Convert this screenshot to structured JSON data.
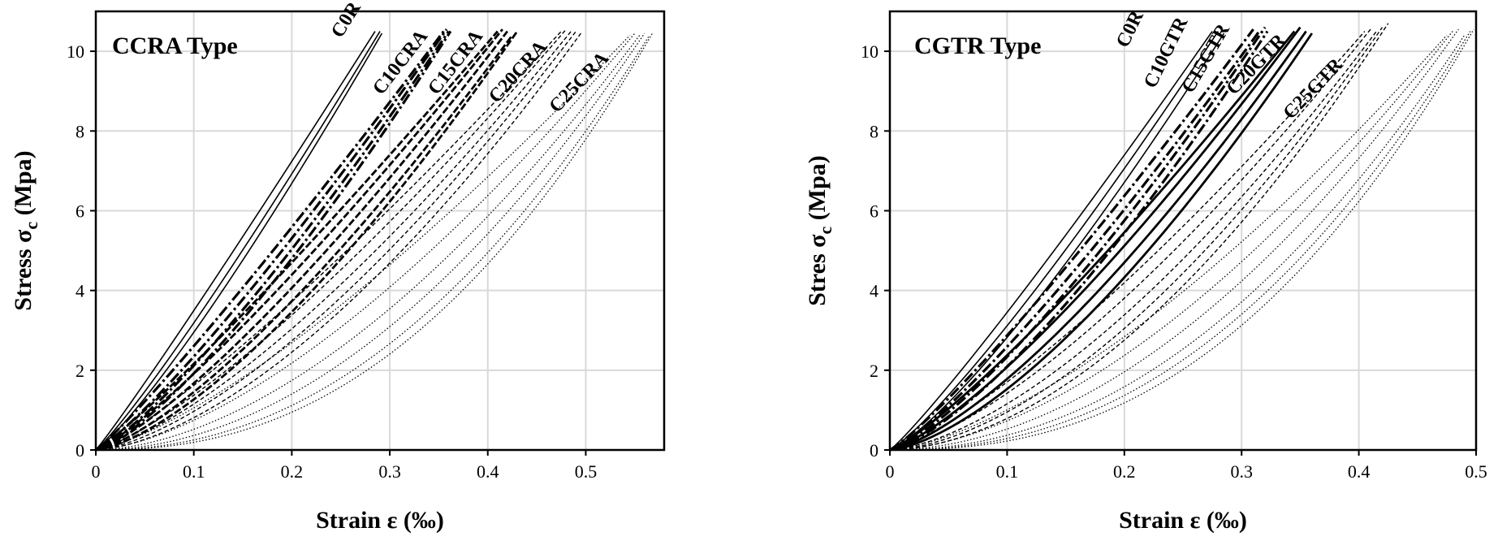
{
  "chart_data": [
    {
      "type": "line",
      "title": "CCRA Type",
      "xlabel": "Strain ε (‰)",
      "ylabel_main": "Stress σ",
      "ylabel_sub": "c",
      "ylabel_tail": " (Mpa)",
      "xlim": [
        0,
        0.58
      ],
      "ylim": [
        0,
        11
      ],
      "xticks": [
        0,
        0.1,
        0.2,
        0.3,
        0.4,
        0.5
      ],
      "xtick_labels": [
        "0",
        "0.1",
        "0.2",
        "0.3",
        "0.4",
        "0.5"
      ],
      "yticks": [
        0,
        2,
        4,
        6,
        8,
        10
      ],
      "ytick_labels": [
        "0",
        "2",
        "4",
        "6",
        "8",
        "10"
      ],
      "groups": [
        {
          "label": "C0R",
          "style": "solid",
          "peaks": [
            [
              0.285,
              10.5
            ],
            [
              0.29,
              10.5
            ],
            [
              0.292,
              10.45
            ]
          ],
          "exponents": [
            1.05,
            1.12,
            1.18
          ]
        },
        {
          "label": "C10CRA",
          "style": "dashdot-heavy",
          "peaks": [
            [
              0.355,
              10.5
            ],
            [
              0.358,
              10.55
            ],
            [
              0.36,
              10.5
            ],
            [
              0.362,
              10.5
            ]
          ],
          "exponents": [
            1.1,
            1.18,
            1.25,
            1.32
          ]
        },
        {
          "label": "C15CRA",
          "style": "dashed-heavy",
          "peaks": [
            [
              0.41,
              10.5
            ],
            [
              0.415,
              10.55
            ],
            [
              0.42,
              10.5
            ],
            [
              0.425,
              10.4
            ],
            [
              0.43,
              10.5
            ]
          ],
          "exponents": [
            1.12,
            1.2,
            1.28,
            1.36,
            1.45
          ]
        },
        {
          "label": "C20CRA",
          "style": "dashed",
          "peaks": [
            [
              0.475,
              10.5
            ],
            [
              0.48,
              10.55
            ],
            [
              0.485,
              10.5
            ],
            [
              0.49,
              10.5
            ],
            [
              0.495,
              10.45
            ]
          ],
          "exponents": [
            1.2,
            1.3,
            1.4,
            1.5,
            1.6
          ]
        },
        {
          "label": "C25CRA",
          "style": "dotted",
          "peaks": [
            [
              0.545,
              10.4
            ],
            [
              0.55,
              10.45
            ],
            [
              0.555,
              10.4
            ],
            [
              0.56,
              10.45
            ],
            [
              0.565,
              10.4
            ],
            [
              0.568,
              10.45
            ]
          ],
          "exponents": [
            1.35,
            1.55,
            1.75,
            1.95,
            2.15,
            2.3
          ]
        }
      ]
    },
    {
      "type": "line",
      "title": "CGTR Type",
      "xlabel": "Strain ε (‰)",
      "ylabel_main": "Stres σ",
      "ylabel_sub": "c",
      "ylabel_tail": " (Mpa)",
      "xlim": [
        0,
        0.5
      ],
      "ylim": [
        0,
        11
      ],
      "xticks": [
        0,
        0.1,
        0.2,
        0.3,
        0.4,
        0.5
      ],
      "xtick_labels": [
        "0",
        "0.1",
        "0.2",
        "0.3",
        "0.4",
        "0.5"
      ],
      "yticks": [
        0,
        2,
        4,
        6,
        8,
        10
      ],
      "ytick_labels": [
        "0",
        "2",
        "4",
        "6",
        "8",
        "10"
      ],
      "groups": [
        {
          "label": "C0R",
          "style": "solid",
          "peaks": [
            [
              0.275,
              10.5
            ],
            [
              0.28,
              10.5
            ],
            [
              0.285,
              10.45
            ]
          ],
          "exponents": [
            1.1,
            1.18,
            1.25
          ]
        },
        {
          "label": "C10GTR",
          "style": "dashdot-heavy",
          "peaks": [
            [
              0.31,
              10.55
            ],
            [
              0.315,
              10.5
            ],
            [
              0.32,
              10.6
            ],
            [
              0.322,
              10.5
            ]
          ],
          "exponents": [
            1.15,
            1.22,
            1.3,
            1.38
          ]
        },
        {
          "label": "C15GTR",
          "style": "solid-heavy",
          "peaks": [
            [
              0.345,
              10.5
            ],
            [
              0.35,
              10.6
            ],
            [
              0.355,
              10.5
            ],
            [
              0.36,
              10.45
            ]
          ],
          "exponents": [
            1.2,
            1.3,
            1.4,
            1.5
          ]
        },
        {
          "label": "C20GTR",
          "style": "dashed",
          "peaks": [
            [
              0.405,
              10.5
            ],
            [
              0.41,
              10.55
            ],
            [
              0.415,
              10.5
            ],
            [
              0.42,
              10.6
            ],
            [
              0.425,
              10.7
            ]
          ],
          "exponents": [
            1.3,
            1.42,
            1.55,
            1.68,
            1.8
          ]
        },
        {
          "label": "C25GTR",
          "style": "dotted",
          "peaks": [
            [
              0.475,
              10.4
            ],
            [
              0.48,
              10.5
            ],
            [
              0.485,
              10.55
            ],
            [
              0.49,
              10.4
            ],
            [
              0.495,
              10.5
            ],
            [
              0.498,
              10.55
            ]
          ],
          "exponents": [
            1.5,
            1.7,
            1.9,
            2.1,
            2.25,
            2.4
          ]
        }
      ]
    }
  ]
}
